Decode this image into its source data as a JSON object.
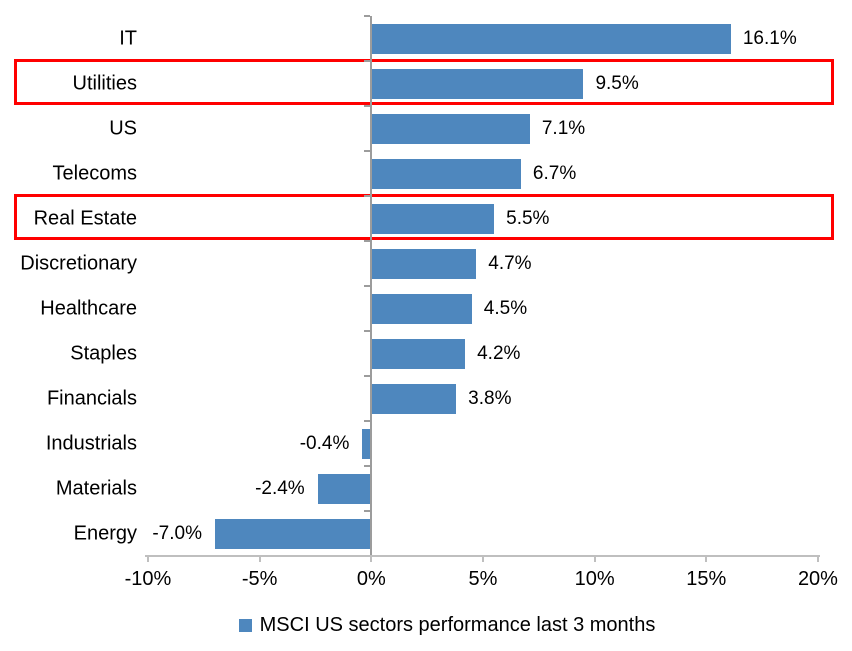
{
  "chart_data": {
    "type": "bar",
    "orientation": "horizontal",
    "title": "",
    "categories": [
      "IT",
      "Utilities",
      "US",
      "Telecoms",
      "Real Estate",
      "Discretionary",
      "Healthcare",
      "Staples",
      "Financials",
      "Industrials",
      "Materials",
      "Energy"
    ],
    "values": [
      16.1,
      9.5,
      7.1,
      6.7,
      5.5,
      4.7,
      4.5,
      4.2,
      3.8,
      -0.4,
      -2.4,
      -7.0
    ],
    "value_labels": [
      "16.1%",
      "9.5%",
      "7.1%",
      "6.7%",
      "5.5%",
      "4.7%",
      "4.5%",
      "4.2%",
      "3.8%",
      "-0.4%",
      "-2.4%",
      "-7.0%"
    ],
    "x_tick_values": [
      -10,
      -5,
      0,
      5,
      10,
      15,
      20
    ],
    "x_tick_labels": [
      "-10%",
      "-5%",
      "0%",
      "5%",
      "10%",
      "15%",
      "20%"
    ],
    "xlim": [
      -10,
      20
    ],
    "grid": false,
    "legend": "MSCI US sectors performance last 3 months",
    "legend_position": "bottom",
    "bar_color": "#4E87BE",
    "highlight_box_color": "#FF0000",
    "highlighted_categories": [
      "Utilities",
      "Real Estate"
    ]
  }
}
